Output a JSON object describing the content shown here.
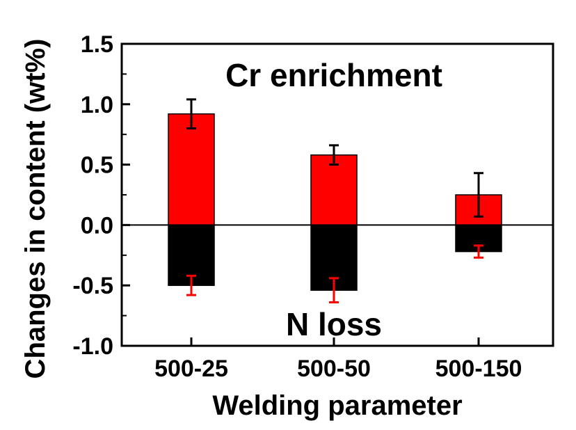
{
  "chart_data": {
    "type": "bar",
    "xlabel": "Welding parameter",
    "ylabel": "Changes in content (wt%)",
    "categories": [
      "500-25",
      "500-50",
      "500-150"
    ],
    "ylim": [
      -1.0,
      1.5
    ],
    "yticks": [
      -1.0,
      -0.5,
      0.0,
      0.5,
      1.0,
      1.5
    ],
    "ytick_labels": [
      "-1.0",
      "-0.5",
      "0.0",
      "0.5",
      "1.0",
      "1.5"
    ],
    "grid": false,
    "zero_line": true,
    "series": [
      {
        "values": [
          0.92,
          0.58,
          0.25
        ],
        "errors": [
          0.12,
          0.08,
          0.18
        ],
        "color": "#ff0000",
        "error_color": "#000000"
      },
      {
        "values": [
          -0.5,
          -0.54,
          -0.22
        ],
        "errors": [
          0.08,
          0.1,
          0.05
        ],
        "color": "#000000",
        "error_color": "#ff0000"
      }
    ],
    "annotations": [
      {
        "text": "Cr enrichment",
        "x_cat": 1,
        "y": 1.24
      },
      {
        "text": "N loss",
        "x_cat": 1,
        "y": -0.82
      }
    ]
  }
}
